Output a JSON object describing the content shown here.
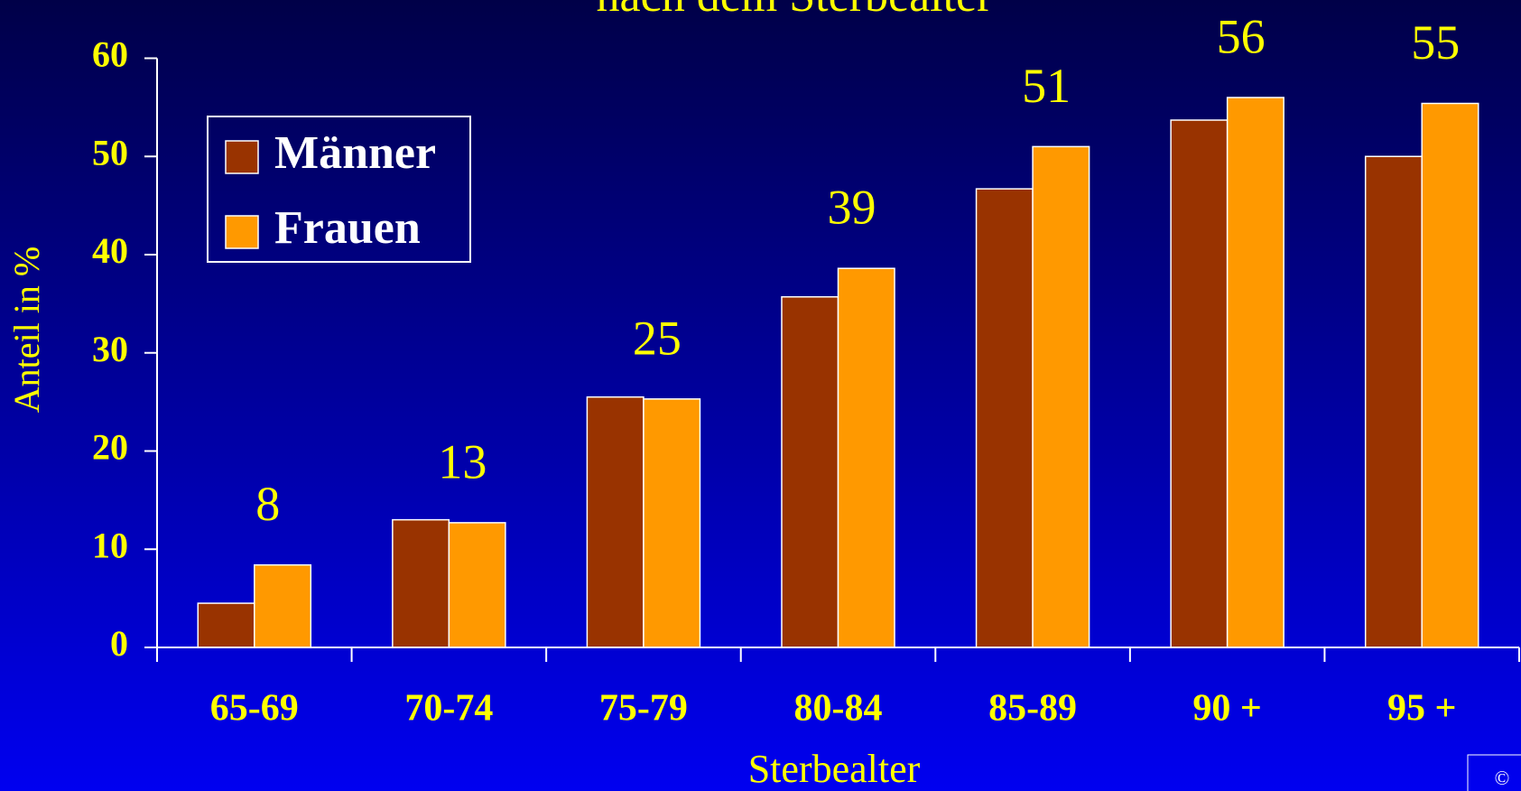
{
  "chart_data": {
    "type": "bar",
    "title": "nach dem Sterbealter",
    "x_label": "Sterbealter",
    "y_label": "Anteil in %",
    "categories": [
      "65-69",
      "70-74",
      "75-79",
      "80-84",
      "85-89",
      "90 +",
      "95 +"
    ],
    "series": [
      {
        "name": "Männer",
        "color": "#993300",
        "values": [
          4.5,
          13,
          25.5,
          35.7,
          46.7,
          53.7,
          50
        ]
      },
      {
        "name": "Frauen",
        "color": "#ff9900",
        "values": [
          8.4,
          12.7,
          25.3,
          38.6,
          51,
          56,
          55.4
        ],
        "value_labels": [
          "8",
          "13",
          "25",
          "39",
          "51",
          "56",
          "55"
        ]
      }
    ],
    "ylim": [
      0,
      60
    ],
    "yticks": [
      0,
      10,
      20,
      30,
      40,
      50,
      60
    ],
    "legend": "upper left",
    "copyright": "©"
  }
}
